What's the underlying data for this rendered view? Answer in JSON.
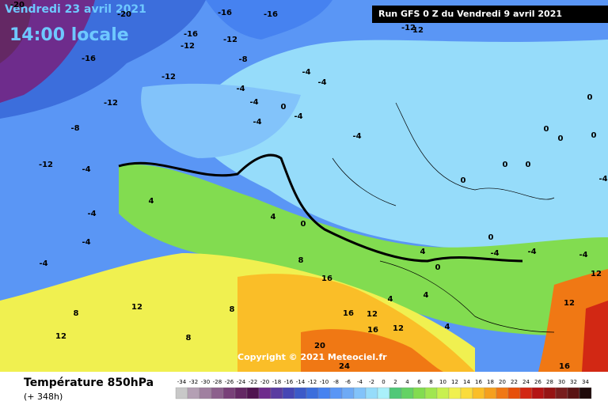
{
  "header": {
    "date": "Vendredi 23 avril 2021",
    "time": "14:00 locale",
    "run": "Run GFS 0 Z du Vendredi 9 avril 2021"
  },
  "copyright": "Copyright © 2021 Meteociel.fr",
  "footer": {
    "title": "Température 850hPa",
    "lead": "(+ 348h)"
  },
  "scale": {
    "values": [
      -34,
      -32,
      -30,
      -28,
      -26,
      -24,
      -22,
      -20,
      -18,
      -16,
      -14,
      -12,
      -10,
      -8,
      -6,
      -4,
      -2,
      0,
      2,
      4,
      6,
      8,
      10,
      12,
      14,
      16,
      18,
      20,
      22,
      24,
      26,
      28,
      30,
      32,
      34
    ],
    "colors": [
      "#c8c8c8",
      "#b4a0b4",
      "#a080a0",
      "#8c608c",
      "#784078",
      "#642864",
      "#501450",
      "#6e2c8c",
      "#5a3ca0",
      "#4646b4",
      "#3c5ac8",
      "#3c6edc",
      "#4682f0",
      "#5a96f5",
      "#6eaaf5",
      "#82c3fa",
      "#96dcfa",
      "#aaf0fa",
      "#50c878",
      "#64d264",
      "#82dc50",
      "#a0e650",
      "#c8f050",
      "#f0f050",
      "#fadc3c",
      "#fabe28",
      "#f5a01e",
      "#f07814",
      "#e6500a",
      "#d22814",
      "#b41414",
      "#961414",
      "#781e1e",
      "#5a1414",
      "#1e0a0a"
    ]
  },
  "contour_labels": [
    -20,
    -20,
    -16,
    -16,
    -16,
    -12,
    -12,
    -16,
    -8,
    -12,
    -4,
    -4,
    -12,
    -4,
    -4,
    0,
    -4,
    -8,
    -4,
    -4,
    -12,
    -4,
    4,
    -4,
    -4,
    -4,
    0,
    8,
    4,
    12,
    8,
    12,
    8,
    8,
    16,
    16,
    12,
    20,
    16,
    12,
    4,
    0,
    4,
    4,
    4,
    0,
    0,
    0,
    0,
    0,
    0,
    0,
    -4,
    -4,
    -4,
    -4,
    0,
    -12,
    12,
    12,
    12,
    16,
    24
  ]
}
